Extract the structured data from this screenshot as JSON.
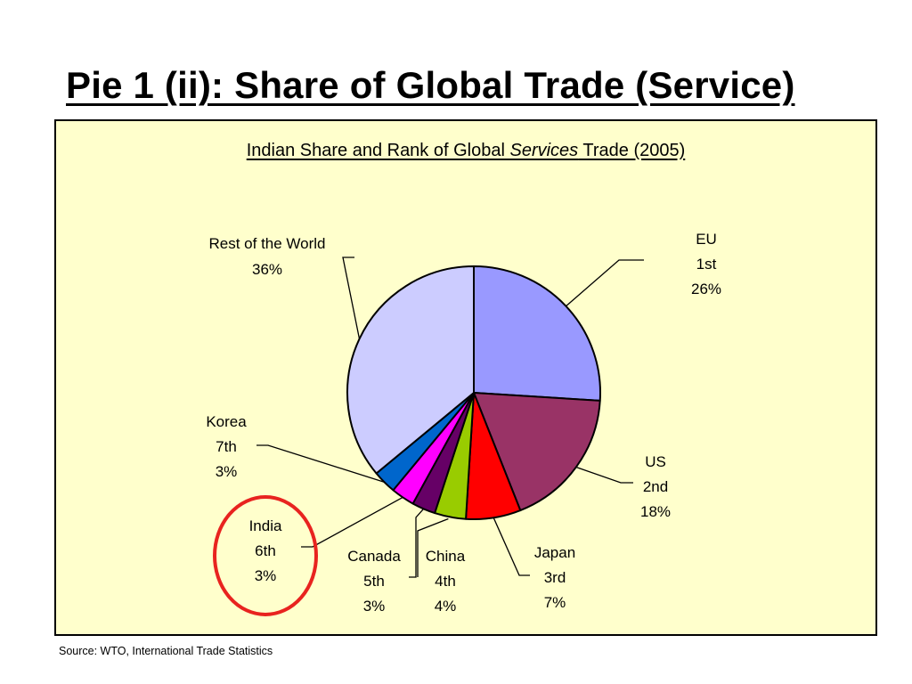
{
  "slide": {
    "title": "Pie 1 (ii): Share of Global Trade (Service)",
    "source": "Source: WTO, International Trade Statistics"
  },
  "chart_data": {
    "type": "pie",
    "title_parts": [
      "Indian Share and Rank of Global ",
      "Services",
      " Trade (2005)"
    ],
    "start_angle_deg": 0,
    "direction": "clockwise",
    "slices": [
      {
        "name": "EU",
        "rank": "1st",
        "value": 26,
        "label": "26%",
        "color": "#9999ff"
      },
      {
        "name": "US",
        "rank": "2nd",
        "value": 18,
        "label": "18%",
        "color": "#993366"
      },
      {
        "name": "Japan",
        "rank": "3rd",
        "value": 7,
        "label": "7%",
        "color": "#ff0000"
      },
      {
        "name": "China",
        "rank": "4th",
        "value": 4,
        "label": "4%",
        "color": "#99cc00"
      },
      {
        "name": "Canada",
        "rank": "5th",
        "value": 3,
        "label": "3%",
        "color": "#660066"
      },
      {
        "name": "India",
        "rank": "6th",
        "value": 3,
        "label": "3%",
        "color": "#ff00ff"
      },
      {
        "name": "Korea",
        "rank": "7th",
        "value": 3,
        "label": "3%",
        "color": "#0066cc"
      },
      {
        "name": "Rest of the World",
        "rank": "",
        "value": 36,
        "label": "36%",
        "color": "#ccccff"
      }
    ],
    "highlight": "India",
    "highlight_color": "#e8231f"
  }
}
